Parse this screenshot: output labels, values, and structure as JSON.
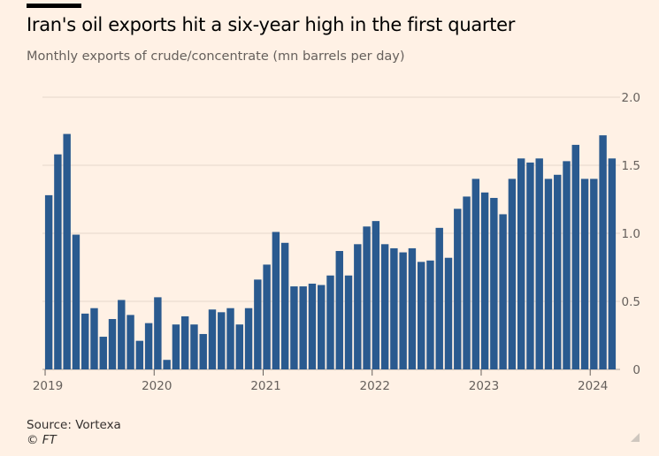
{
  "header": {
    "title": "Iran's oil exports hit a six-year high in the first quarter",
    "subtitle": "Monthly exports of crude/concentrate (mn barrels per day)"
  },
  "footer": {
    "source": "Source: Vortexa",
    "credit": "© FT"
  },
  "colors": {
    "background": "#fff1e5",
    "bar": "#2a5a8f",
    "grid": "#e5d8cc",
    "axis_text": "#66605c"
  },
  "chart_data": {
    "type": "bar",
    "title": "Iran's oil exports hit a six-year high in the first quarter",
    "subtitle": "Monthly exports of crude/concentrate (mn barrels per day)",
    "xlabel": "",
    "ylabel": "",
    "ylim": [
      0,
      2.0
    ],
    "yticks": [
      0,
      0.5,
      1.0,
      1.5,
      2.0
    ],
    "ytick_labels": [
      "0",
      "0.5",
      "1.0",
      "1.5",
      "2.0"
    ],
    "xtick_labels": [
      "2019",
      "2020",
      "2021",
      "2022",
      "2023",
      "2024"
    ],
    "y_axis_side": "right",
    "grid": true,
    "start_month": "2019-01",
    "values": [
      1.28,
      1.58,
      1.73,
      0.99,
      0.41,
      0.45,
      0.24,
      0.37,
      0.51,
      0.4,
      0.21,
      0.34,
      0.53,
      0.07,
      0.33,
      0.39,
      0.33,
      0.26,
      0.44,
      0.42,
      0.45,
      0.33,
      0.45,
      0.66,
      0.77,
      1.01,
      0.93,
      0.61,
      0.61,
      0.63,
      0.62,
      0.69,
      0.87,
      0.69,
      0.92,
      1.05,
      1.09,
      0.92,
      0.89,
      0.86,
      0.89,
      0.79,
      0.8,
      1.04,
      0.82,
      1.18,
      1.27,
      1.4,
      1.3,
      1.26,
      1.14,
      1.4,
      1.55,
      1.52,
      1.55,
      1.4,
      1.43,
      1.53,
      1.65,
      1.4,
      1.4,
      1.72,
      1.55
    ]
  }
}
